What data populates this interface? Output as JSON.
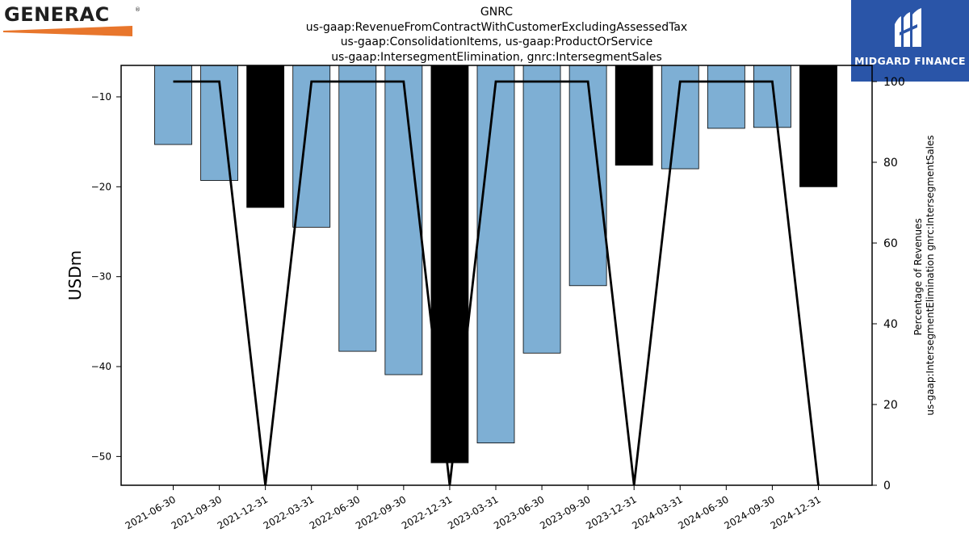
{
  "branding": {
    "left_logo_text": "GENERAC",
    "left_logo_mark": "®",
    "left_logo_accent": "#e8762c",
    "right_logo_text": "MIDGARD FINANCE",
    "right_logo_bg": "#2a55a8"
  },
  "chart_data": {
    "type": "bar",
    "title_lines": [
      "GNRC",
      "us-gaap:RevenueFromContractWithCustomerExcludingAssessedTax",
      "us-gaap:ConsolidationItems, us-gaap:ProductOrService",
      "us-gaap:IntersegmentElimination, gnrc:IntersegmentSales"
    ],
    "ylabel": "USDm",
    "y2label_lines": [
      "Percentage of Revenues",
      "us-gaap:IntersegmentElimination gnrc:IntersegmentSales"
    ],
    "categories": [
      "2021-06-30",
      "2021-09-30",
      "2021-12-31",
      "2022-03-31",
      "2022-06-30",
      "2022-09-30",
      "2022-12-31",
      "2023-03-31",
      "2023-06-30",
      "2023-09-30",
      "2023-12-31",
      "2024-03-31",
      "2024-06-30",
      "2024-09-30",
      "2024-12-31"
    ],
    "values": [
      -15.3,
      -19.3,
      -22.3,
      -24.5,
      -38.3,
      -40.9,
      -50.7,
      -48.5,
      -38.5,
      -31.0,
      -17.6,
      -18.0,
      -13.5,
      -13.4,
      -20.0
    ],
    "bar_colors": [
      "#7eafd4",
      "#7eafd4",
      "#000000",
      "#7eafd4",
      "#7eafd4",
      "#7eafd4",
      "#000000",
      "#7eafd4",
      "#7eafd4",
      "#7eafd4",
      "#000000",
      "#7eafd4",
      "#7eafd4",
      "#7eafd4",
      "#000000"
    ],
    "line_values": [
      100,
      100,
      0,
      100,
      100,
      100,
      0,
      100,
      100,
      100,
      0,
      100,
      100,
      100,
      0
    ],
    "ylim": [
      -53.2,
      -6.5
    ],
    "yticks": [
      -10,
      -20,
      -30,
      -40,
      -50
    ],
    "y2lim": [
      0,
      104
    ],
    "y2ticks": [
      0,
      20,
      40,
      60,
      80,
      100
    ],
    "grid": false,
    "legend": "none"
  }
}
